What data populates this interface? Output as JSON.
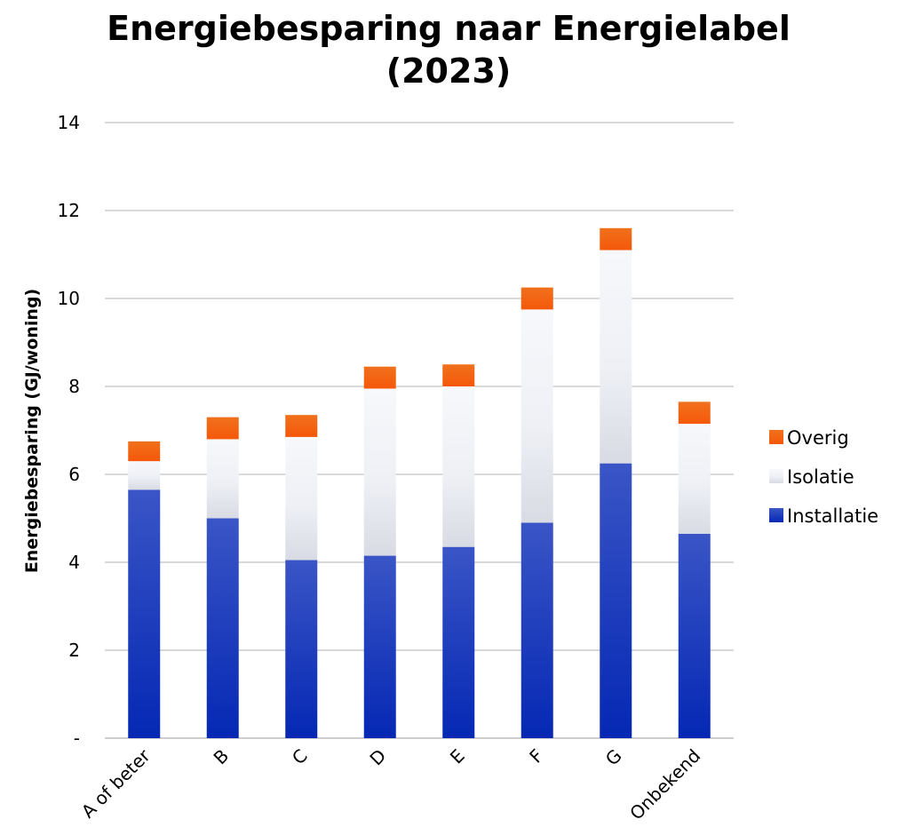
{
  "chart_data": {
    "type": "bar",
    "stacked": true,
    "title_lines": [
      "Energiebesparing naar Energielabel",
      "(2023)"
    ],
    "ylabel": "Energiebesparing (GJ/woning)",
    "xlabel": "",
    "ylim": [
      0,
      14
    ],
    "yticks": [
      0,
      2,
      4,
      6,
      8,
      10,
      12,
      14
    ],
    "ytick_labels": [
      "-",
      "2",
      "4",
      "6",
      "8",
      "10",
      "12",
      "14"
    ],
    "grid": true,
    "legend_position": "right",
    "categories": [
      "A of beter",
      "B",
      "C",
      "D",
      "E",
      "F",
      "G",
      "Onbekend"
    ],
    "series": [
      {
        "name": "Installatie",
        "color": "#0a2fb8",
        "values": [
          5.65,
          5.0,
          4.05,
          4.15,
          4.35,
          4.9,
          6.25,
          4.65
        ]
      },
      {
        "name": "Isolatie",
        "color": "#e3e6ef",
        "values": [
          0.65,
          1.8,
          2.8,
          3.8,
          3.65,
          4.85,
          4.85,
          2.5
        ]
      },
      {
        "name": "Overig",
        "color": "#f26a10",
        "values": [
          0.45,
          0.5,
          0.5,
          0.5,
          0.5,
          0.5,
          0.5,
          0.5
        ]
      }
    ],
    "legend_order": [
      "Overig",
      "Isolatie",
      "Installatie"
    ]
  }
}
